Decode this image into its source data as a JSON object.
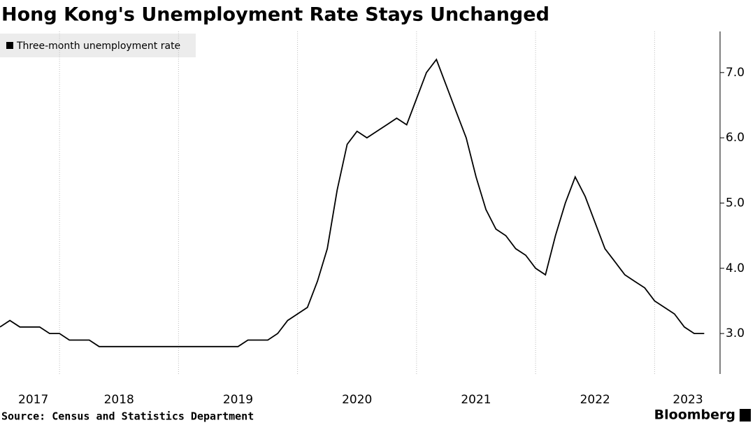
{
  "chart_data": {
    "type": "line",
    "title": "Hong Kong's Unemployment Rate Stays Unchanged",
    "source": "Source: Census and Statistics Department",
    "brand": "Bloomberg",
    "x": [
      2017.5,
      2017.583,
      2017.667,
      2017.75,
      2017.833,
      2017.917,
      2018,
      2018.083,
      2018.167,
      2018.25,
      2018.333,
      2018.417,
      2018.5,
      2018.583,
      2018.667,
      2018.75,
      2018.833,
      2018.917,
      2019,
      2019.083,
      2019.167,
      2019.25,
      2019.333,
      2019.417,
      2019.5,
      2019.583,
      2019.667,
      2019.75,
      2019.833,
      2019.917,
      2020,
      2020.083,
      2020.167,
      2020.25,
      2020.333,
      2020.417,
      2020.5,
      2020.583,
      2020.667,
      2020.75,
      2020.833,
      2020.917,
      2021,
      2021.083,
      2021.167,
      2021.25,
      2021.333,
      2021.417,
      2021.5,
      2021.583,
      2021.667,
      2021.75,
      2021.833,
      2021.917,
      2022,
      2022.083,
      2022.167,
      2022.25,
      2022.333,
      2022.417,
      2022.5,
      2022.583,
      2022.667,
      2022.75,
      2022.833,
      2022.917,
      2023,
      2023.083,
      2023.167,
      2023.25,
      2023.333,
      2023.417
    ],
    "series": [
      {
        "name": "Three-month unemployment rate",
        "color": "#000000",
        "values": [
          3.1,
          3.2,
          3.1,
          3.1,
          3.1,
          3.0,
          3.0,
          2.9,
          2.9,
          2.9,
          2.8,
          2.8,
          2.8,
          2.8,
          2.8,
          2.8,
          2.8,
          2.8,
          2.8,
          2.8,
          2.8,
          2.8,
          2.8,
          2.8,
          2.8,
          2.9,
          2.9,
          2.9,
          3.0,
          3.2,
          3.3,
          3.4,
          3.8,
          4.3,
          5.2,
          5.9,
          6.1,
          6.0,
          6.1,
          6.2,
          6.3,
          6.2,
          6.6,
          7.0,
          7.2,
          6.8,
          6.4,
          6.0,
          5.4,
          4.9,
          4.6,
          4.5,
          4.3,
          4.2,
          4.0,
          3.9,
          4.5,
          5.0,
          5.4,
          5.1,
          4.7,
          4.3,
          4.1,
          3.9,
          3.8,
          3.7,
          3.5,
          3.4,
          3.3,
          3.1,
          3.0,
          3.0
        ]
      }
    ],
    "xlim": [
      2017.5,
      2023.55
    ],
    "xticks": [
      {
        "value": 2017.78,
        "label": "2017"
      },
      {
        "value": 2018.5,
        "label": "2018"
      },
      {
        "value": 2019.5,
        "label": "2019"
      },
      {
        "value": 2020.5,
        "label": "2020"
      },
      {
        "value": 2021.5,
        "label": "2021"
      },
      {
        "value": 2022.5,
        "label": "2022"
      },
      {
        "value": 2023.28,
        "label": "2023"
      }
    ],
    "xgrid": [
      2018,
      2019,
      2020,
      2021,
      2022,
      2023
    ],
    "ylim": [
      2.38,
      7.63
    ],
    "yticks": [
      {
        "value": 3,
        "label": "3.0"
      },
      {
        "value": 4,
        "label": "4.0"
      },
      {
        "value": 5,
        "label": "5.0"
      },
      {
        "value": 6,
        "label": "6.0"
      },
      {
        "value": 7,
        "label": "7.0"
      }
    ]
  }
}
